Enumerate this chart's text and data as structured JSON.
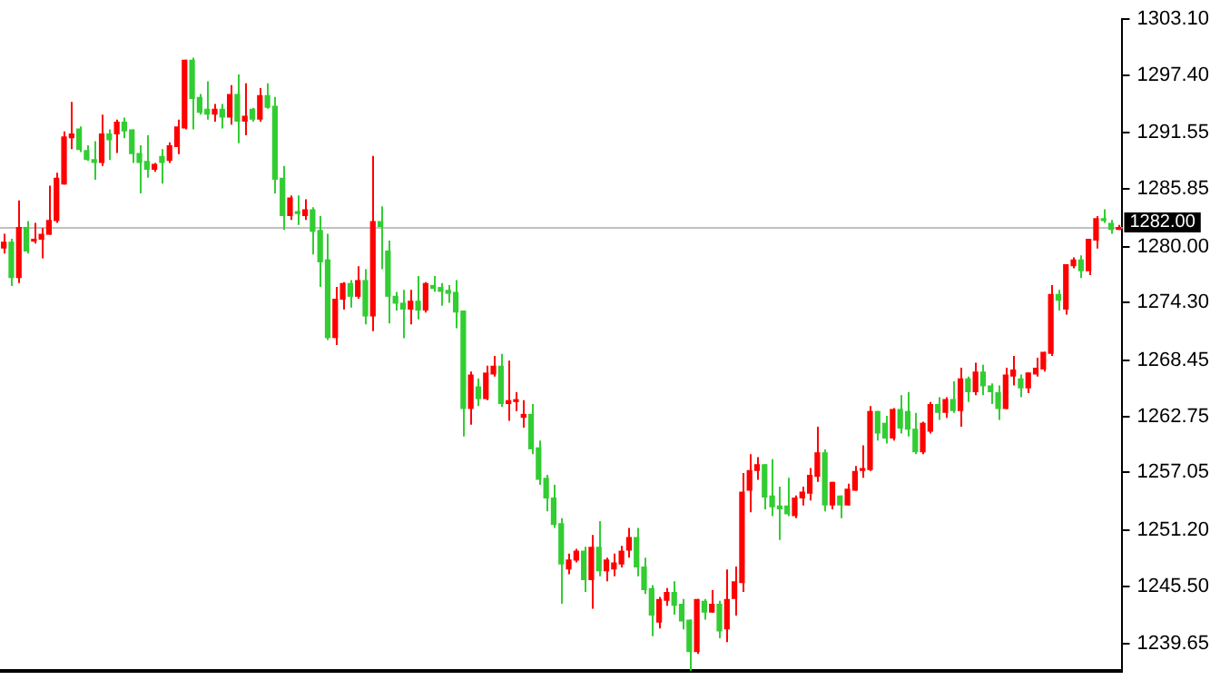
{
  "chart_data": {
    "type": "candlestick",
    "categories": [
      null,
      null,
      null,
      null,
      null,
      null,
      null,
      null,
      null,
      null,
      null,
      null,
      null,
      null,
      null,
      null,
      null,
      null,
      null,
      null,
      null,
      null,
      null,
      null,
      null,
      null,
      null,
      null,
      null,
      null,
      null,
      null,
      null,
      null,
      null,
      null,
      null,
      null,
      null,
      null,
      null,
      null,
      null,
      null,
      null,
      null,
      null,
      null,
      null,
      null,
      null,
      null,
      null,
      null,
      null,
      null,
      null,
      null,
      null,
      null,
      null,
      null,
      null,
      null,
      null,
      null,
      null,
      null,
      null,
      null,
      null,
      null,
      null,
      null,
      null,
      null,
      null,
      null,
      null,
      null,
      null,
      null,
      null,
      null,
      null,
      null,
      null,
      null,
      null,
      null,
      null,
      null,
      null,
      null,
      null,
      null,
      null,
      null,
      null,
      null,
      null,
      null,
      null,
      null,
      null,
      null,
      null,
      null,
      null,
      null,
      null,
      null,
      null,
      null,
      null,
      null,
      null,
      null,
      null,
      null,
      null,
      null,
      null,
      null,
      null,
      null,
      null,
      null,
      null,
      null,
      null,
      null,
      null,
      null,
      null,
      null,
      null,
      null,
      null,
      null,
      null,
      null,
      null,
      null,
      null,
      null,
      null,
      null,
      null
    ],
    "ohlc": [
      [
        1279.8,
        1281.3,
        1279.3,
        1280.5
      ],
      [
        1280.5,
        1280.8,
        1276.0,
        1276.8
      ],
      [
        1276.8,
        1284.7,
        1276.3,
        1282.0
      ],
      [
        1282.0,
        1282.6,
        1279.3,
        1279.5
      ],
      [
        1280.5,
        1282.4,
        1280.3,
        1280.8
      ],
      [
        1280.7,
        1281.9,
        1278.8,
        1281.3
      ],
      [
        1281.2,
        1286.2,
        1281.2,
        1282.7
      ],
      [
        1282.6,
        1287.5,
        1282.4,
        1287.0
      ],
      [
        1286.3,
        1291.7,
        1286.3,
        1291.2
      ],
      [
        1291.0,
        1294.7,
        1289.9,
        1291.5
      ],
      [
        1292.0,
        1292.2,
        1289.6,
        1289.8
      ],
      [
        1289.8,
        1290.3,
        1288.7,
        1288.8
      ],
      [
        1288.9,
        1290.7,
        1286.8,
        1288.5
      ],
      [
        1288.5,
        1293.4,
        1288.2,
        1291.5
      ],
      [
        1291.5,
        1291.9,
        1288.8,
        1290.8
      ],
      [
        1291.4,
        1292.9,
        1289.5,
        1292.7
      ],
      [
        1292.7,
        1293.1,
        1291.0,
        1291.7
      ],
      [
        1291.9,
        1291.9,
        1288.5,
        1289.4
      ],
      [
        1289.5,
        1290.3,
        1285.4,
        1288.5
      ],
      [
        1288.7,
        1291.3,
        1287.0,
        1287.8
      ],
      [
        1287.8,
        1288.5,
        1287.6,
        1288.4
      ],
      [
        1289.2,
        1289.9,
        1286.4,
        1288.5
      ],
      [
        1288.7,
        1290.6,
        1288.5,
        1290.3
      ],
      [
        1290.1,
        1292.9,
        1289.4,
        1292.2
      ],
      [
        1292.0,
        1299.0,
        1291.9,
        1299.0
      ],
      [
        1299.0,
        1299.2,
        1291.9,
        1295.0
      ],
      [
        1295.2,
        1295.5,
        1293.4,
        1293.6
      ],
      [
        1294.0,
        1296.8,
        1292.9,
        1293.4
      ],
      [
        1293.4,
        1294.5,
        1292.7,
        1294.0
      ],
      [
        1294.0,
        1294.5,
        1292.0,
        1293.1
      ],
      [
        1293.1,
        1296.4,
        1292.4,
        1295.5
      ],
      [
        1295.5,
        1297.5,
        1290.5,
        1292.7
      ],
      [
        1292.7,
        1296.6,
        1291.3,
        1293.3
      ],
      [
        1294.0,
        1294.1,
        1292.7,
        1292.9
      ],
      [
        1292.9,
        1296.1,
        1292.7,
        1295.4
      ],
      [
        1295.4,
        1296.6,
        1294.0,
        1294.1
      ],
      [
        1294.3,
        1295.2,
        1285.4,
        1286.8
      ],
      [
        1287.0,
        1288.2,
        1281.7,
        1283.1
      ],
      [
        1283.1,
        1285.2,
        1282.7,
        1285.0
      ],
      [
        1283.6,
        1285.2,
        1282.2,
        1283.3
      ],
      [
        1283.1,
        1284.8,
        1282.7,
        1283.8
      ],
      [
        1283.8,
        1284.0,
        1279.2,
        1281.5
      ],
      [
        1281.7,
        1283.1,
        1275.9,
        1278.4
      ],
      [
        1278.7,
        1281.3,
        1270.5,
        1270.7
      ],
      [
        1270.7,
        1275.9,
        1270.0,
        1274.7
      ],
      [
        1274.6,
        1276.4,
        1273.6,
        1276.3
      ],
      [
        1276.3,
        1276.6,
        1273.8,
        1274.9
      ],
      [
        1274.9,
        1278.0,
        1274.7,
        1276.6
      ],
      [
        1276.6,
        1277.7,
        1272.1,
        1272.9
      ],
      [
        1272.9,
        1289.2,
        1271.4,
        1282.6
      ],
      [
        1282.6,
        1284.1,
        1277.7,
        1282.0
      ],
      [
        1279.6,
        1280.6,
        1272.2,
        1274.9
      ],
      [
        1275.0,
        1275.4,
        1273.5,
        1274.2
      ],
      [
        1274.3,
        1275.6,
        1270.7,
        1273.6
      ],
      [
        1273.6,
        1275.6,
        1272.1,
        1274.5
      ],
      [
        1274.5,
        1277.0,
        1272.6,
        1273.5
      ],
      [
        1273.5,
        1276.4,
        1273.3,
        1276.3
      ],
      [
        1276.1,
        1277.0,
        1275.4,
        1275.7
      ],
      [
        1275.9,
        1276.3,
        1274.0,
        1275.4
      ],
      [
        1275.6,
        1276.1,
        1274.3,
        1275.2
      ],
      [
        1275.4,
        1276.6,
        1271.7,
        1273.3
      ],
      [
        1273.5,
        1273.5,
        1260.7,
        1263.5
      ],
      [
        1263.5,
        1267.3,
        1261.9,
        1267.0
      ],
      [
        1265.8,
        1266.6,
        1263.8,
        1264.5
      ],
      [
        1264.5,
        1267.9,
        1264.4,
        1267.2
      ],
      [
        1267.0,
        1268.9,
        1266.8,
        1267.9
      ],
      [
        1267.9,
        1269.1,
        1263.7,
        1264.0
      ],
      [
        1264.0,
        1268.4,
        1262.3,
        1264.4
      ],
      [
        1264.2,
        1265.2,
        1263.3,
        1264.5
      ],
      [
        1262.6,
        1264.4,
        1261.6,
        1263.0
      ],
      [
        1263.0,
        1264.0,
        1258.9,
        1259.4
      ],
      [
        1259.6,
        1260.3,
        1255.8,
        1256.3
      ],
      [
        1256.5,
        1256.8,
        1253.1,
        1254.4
      ],
      [
        1254.5,
        1255.8,
        1251.4,
        1251.7
      ],
      [
        1251.9,
        1252.4,
        1243.7,
        1247.7
      ],
      [
        1247.2,
        1248.8,
        1246.7,
        1248.2
      ],
      [
        1248.1,
        1249.3,
        1247.9,
        1249.1
      ],
      [
        1249.1,
        1249.5,
        1244.9,
        1246.1
      ],
      [
        1246.1,
        1250.7,
        1243.2,
        1249.5
      ],
      [
        1249.5,
        1252.1,
        1246.5,
        1247.0
      ],
      [
        1247.0,
        1248.4,
        1246.0,
        1248.2
      ],
      [
        1247.2,
        1248.8,
        1246.5,
        1247.9
      ],
      [
        1247.7,
        1249.6,
        1247.4,
        1249.1
      ],
      [
        1249.1,
        1251.4,
        1248.4,
        1250.5
      ],
      [
        1250.5,
        1251.4,
        1246.5,
        1247.4
      ],
      [
        1247.5,
        1248.4,
        1244.7,
        1245.1
      ],
      [
        1245.3,
        1245.6,
        1240.4,
        1242.5
      ],
      [
        1241.8,
        1244.4,
        1241.2,
        1244.2
      ],
      [
        1244.0,
        1245.3,
        1243.5,
        1244.9
      ],
      [
        1244.9,
        1246.0,
        1242.6,
        1243.5
      ],
      [
        1243.7,
        1244.2,
        1241.1,
        1241.9
      ],
      [
        1242.1,
        1242.1,
        1236.9,
        1238.8
      ],
      [
        1238.8,
        1244.2,
        1238.6,
        1244.2
      ],
      [
        1244.0,
        1244.2,
        1242.1,
        1242.8
      ],
      [
        1242.8,
        1245.1,
        1242.8,
        1243.7
      ],
      [
        1243.7,
        1244.0,
        1240.2,
        1240.9
      ],
      [
        1241.1,
        1247.2,
        1239.8,
        1244.2
      ],
      [
        1244.2,
        1247.5,
        1242.5,
        1246.0
      ],
      [
        1245.8,
        1257.0,
        1244.9,
        1255.1
      ],
      [
        1255.2,
        1258.9,
        1253.0,
        1257.3
      ],
      [
        1257.2,
        1258.6,
        1256.3,
        1257.9
      ],
      [
        1257.9,
        1257.9,
        1253.3,
        1254.5
      ],
      [
        1254.7,
        1258.4,
        1252.6,
        1253.5
      ],
      [
        1253.7,
        1255.6,
        1250.2,
        1253.3
      ],
      [
        1253.7,
        1256.5,
        1252.6,
        1252.8
      ],
      [
        1252.6,
        1254.7,
        1252.4,
        1254.5
      ],
      [
        1254.4,
        1255.6,
        1253.7,
        1255.1
      ],
      [
        1254.9,
        1257.5,
        1254.2,
        1256.8
      ],
      [
        1256.6,
        1261.7,
        1256.1,
        1259.1
      ],
      [
        1259.1,
        1259.4,
        1253.1,
        1253.7
      ],
      [
        1253.7,
        1256.1,
        1253.3,
        1256.1
      ],
      [
        1254.7,
        1254.7,
        1252.4,
        1253.7
      ],
      [
        1253.7,
        1255.9,
        1253.7,
        1255.4
      ],
      [
        1255.2,
        1257.7,
        1255.2,
        1257.2
      ],
      [
        1257.2,
        1259.8,
        1256.5,
        1257.5
      ],
      [
        1257.3,
        1263.8,
        1257.2,
        1263.3
      ],
      [
        1263.3,
        1263.3,
        1260.3,
        1261.0
      ],
      [
        1262.1,
        1262.8,
        1260.0,
        1260.5
      ],
      [
        1260.5,
        1263.6,
        1260.3,
        1263.5
      ],
      [
        1263.5,
        1264.9,
        1261.0,
        1261.5
      ],
      [
        1263.3,
        1265.2,
        1260.7,
        1261.4
      ],
      [
        1261.5,
        1263.1,
        1258.9,
        1259.1
      ],
      [
        1259.1,
        1262.2,
        1258.9,
        1262.1
      ],
      [
        1261.2,
        1264.2,
        1261.0,
        1264.0
      ],
      [
        1264.0,
        1264.7,
        1262.4,
        1263.1
      ],
      [
        1263.1,
        1264.7,
        1262.6,
        1264.5
      ],
      [
        1264.5,
        1266.3,
        1263.1,
        1263.3
      ],
      [
        1263.3,
        1267.7,
        1261.7,
        1266.6
      ],
      [
        1266.6,
        1266.8,
        1264.2,
        1265.2
      ],
      [
        1265.2,
        1268.2,
        1264.9,
        1267.3
      ],
      [
        1267.3,
        1268.0,
        1264.9,
        1265.8
      ],
      [
        1265.9,
        1266.1,
        1264.0,
        1265.2
      ],
      [
        1265.2,
        1265.9,
        1262.4,
        1263.5
      ],
      [
        1263.5,
        1267.7,
        1263.5,
        1267.0
      ],
      [
        1266.8,
        1268.9,
        1265.9,
        1267.5
      ],
      [
        1266.6,
        1267.0,
        1264.7,
        1265.6
      ],
      [
        1265.6,
        1267.2,
        1265.1,
        1267.2
      ],
      [
        1267.0,
        1268.7,
        1266.8,
        1267.7
      ],
      [
        1267.5,
        1269.3,
        1267.3,
        1269.3
      ],
      [
        1269.1,
        1276.1,
        1268.9,
        1275.2
      ],
      [
        1275.2,
        1275.6,
        1273.5,
        1274.5
      ],
      [
        1273.6,
        1278.2,
        1273.1,
        1278.2
      ],
      [
        1278.0,
        1278.9,
        1277.8,
        1278.7
      ],
      [
        1278.7,
        1279.1,
        1276.8,
        1277.5
      ],
      [
        1277.5,
        1280.8,
        1277.1,
        1280.8
      ],
      [
        1280.6,
        1283.1,
        1279.8,
        1282.9
      ],
      [
        1282.9,
        1283.8,
        1282.4,
        1282.6
      ],
      [
        1282.4,
        1282.7,
        1281.3,
        1281.7
      ],
      [
        1281.7,
        1282.2,
        1281.7,
        1282.0
      ]
    ],
    "colors": [
      "#ff0000",
      "#32cd32",
      "#ff0000",
      "#32cd32",
      "#ff0000",
      "#ff0000",
      "#ff0000",
      "#ff0000",
      "#ff0000",
      "#ff0000",
      "#32cd32",
      "#32cd32",
      "#32cd32",
      "#ff0000",
      "#32cd32",
      "#ff0000",
      "#32cd32",
      "#32cd32",
      "#32cd32",
      "#32cd32",
      "#ff0000",
      "#32cd32",
      "#ff0000",
      "#ff0000",
      "#ff0000",
      "#32cd32",
      "#32cd32",
      "#32cd32",
      "#ff0000",
      "#32cd32",
      "#ff0000",
      "#32cd32",
      "#ff0000",
      "#32cd32",
      "#ff0000",
      "#32cd32",
      "#32cd32",
      "#32cd32",
      "#ff0000",
      "#32cd32",
      "#ff0000",
      "#32cd32",
      "#32cd32",
      "#32cd32",
      "#ff0000",
      "#ff0000",
      "#32cd32",
      "#ff0000",
      "#32cd32",
      "#ff0000",
      "#32cd32",
      "#32cd32",
      "#32cd32",
      "#32cd32",
      "#ff0000",
      "#32cd32",
      "#ff0000",
      "#32cd32",
      "#32cd32",
      "#32cd32",
      "#32cd32",
      "#32cd32",
      "#ff0000",
      "#32cd32",
      "#ff0000",
      "#ff0000",
      "#32cd32",
      "#ff0000",
      "#ff0000",
      "#ff0000",
      "#32cd32",
      "#32cd32",
      "#32cd32",
      "#32cd32",
      "#32cd32",
      "#ff0000",
      "#ff0000",
      "#32cd32",
      "#ff0000",
      "#32cd32",
      "#ff0000",
      "#ff0000",
      "#ff0000",
      "#ff0000",
      "#32cd32",
      "#32cd32",
      "#32cd32",
      "#ff0000",
      "#ff0000",
      "#32cd32",
      "#32cd32",
      "#32cd32",
      "#ff0000",
      "#32cd32",
      "#ff0000",
      "#32cd32",
      "#ff0000",
      "#ff0000",
      "#ff0000",
      "#ff0000",
      "#ff0000",
      "#32cd32",
      "#32cd32",
      "#32cd32",
      "#32cd32",
      "#ff0000",
      "#ff0000",
      "#ff0000",
      "#ff0000",
      "#32cd32",
      "#ff0000",
      "#32cd32",
      "#ff0000",
      "#ff0000",
      "#ff0000",
      "#ff0000",
      "#32cd32",
      "#32cd32",
      "#ff0000",
      "#32cd32",
      "#32cd32",
      "#32cd32",
      "#ff0000",
      "#ff0000",
      "#32cd32",
      "#ff0000",
      "#32cd32",
      "#ff0000",
      "#32cd32",
      "#ff0000",
      "#32cd32",
      "#32cd32",
      "#32cd32",
      "#ff0000",
      "#ff0000",
      "#32cd32",
      "#ff0000",
      "#ff0000",
      "#ff0000",
      "#ff0000",
      "#32cd32",
      "#ff0000",
      "#ff0000",
      "#32cd32",
      "#ff0000",
      "#ff0000",
      "#32cd32",
      "#32cd32",
      "#ff0000"
    ],
    "ylim": [
      1236.9,
      1303.1
    ],
    "yticks": [
      {
        "value": 1303.1,
        "label": "1303.10"
      },
      {
        "value": 1297.4,
        "label": "1297.40"
      },
      {
        "value": 1291.55,
        "label": "1291.55"
      },
      {
        "value": 1285.85,
        "label": "1285.85"
      },
      {
        "value": 1280.0,
        "label": "1280.00"
      },
      {
        "value": 1274.3,
        "label": "1274.30"
      },
      {
        "value": 1268.45,
        "label": "1268.45"
      },
      {
        "value": 1262.75,
        "label": "1262.75"
      },
      {
        "value": 1257.05,
        "label": "1257.05"
      },
      {
        "value": 1251.2,
        "label": "1251.20"
      },
      {
        "value": 1245.5,
        "label": "1245.50"
      },
      {
        "value": 1239.65,
        "label": "1239.65"
      }
    ],
    "ref_lines": [
      {
        "axis": "y",
        "value": 1282.0,
        "label": "1282.00",
        "color": "#c0c0c0"
      }
    ],
    "tick_labels": "y"
  }
}
